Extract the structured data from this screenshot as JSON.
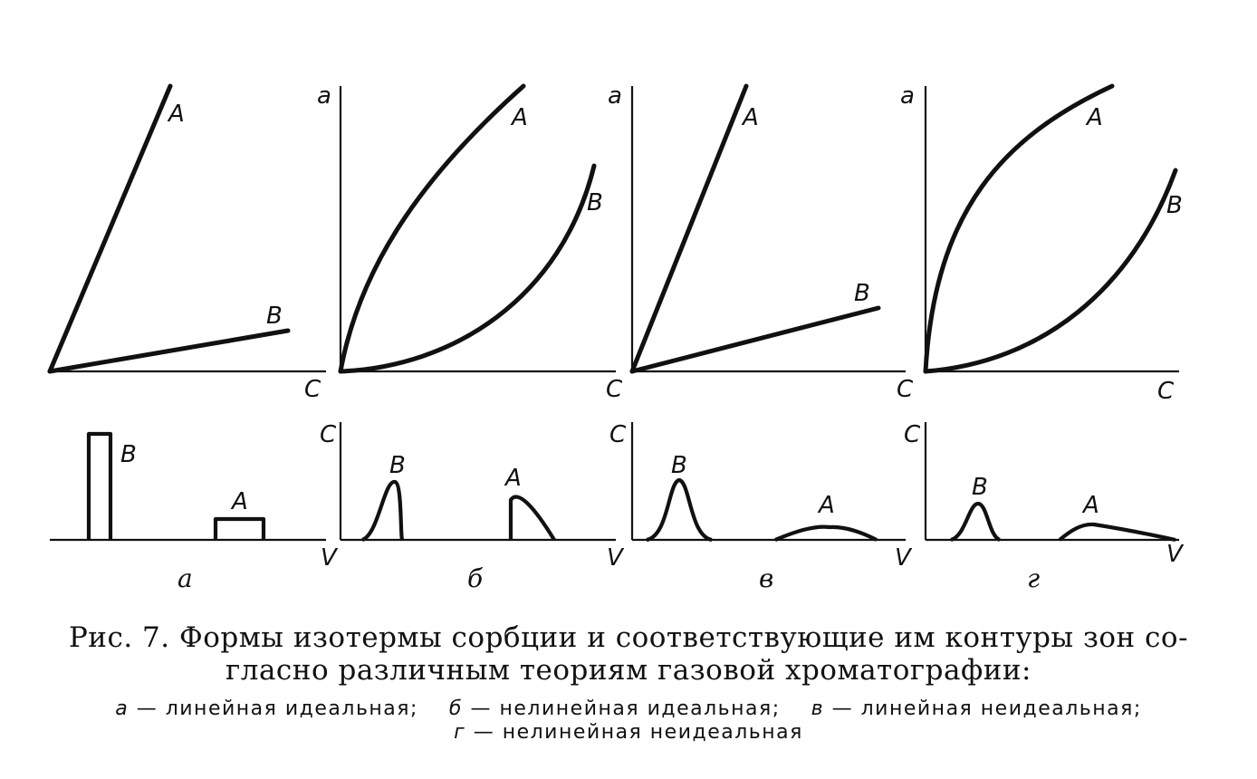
{
  "figure": {
    "labels": {
      "curve_a": "A",
      "curve_b": "B",
      "isotherm_y": "a",
      "isotherm_x": "C",
      "zone_y": "C",
      "zone_x": "V"
    },
    "panels": [
      {
        "letter": "a",
        "isotherm": "linear",
        "zones": "ideal"
      },
      {
        "letter": "б",
        "isotherm": "nonlinear",
        "zones": "ideal"
      },
      {
        "letter": "в",
        "isotherm": "linear",
        "zones": "nonideal"
      },
      {
        "letter": "г",
        "isotherm": "nonlinear",
        "zones": "nonideal"
      }
    ]
  },
  "caption": {
    "line1": "Рис. 7. Формы изотермы сорбции и соответствующие им контуры зон со-",
    "line2": "гласно различным теориям газовой хроматографии:",
    "legend": [
      {
        "letter": "а",
        "text": "— линейная идеальная;"
      },
      {
        "letter": "б",
        "text": "— нелинейная идеальная;"
      },
      {
        "letter": "в",
        "text": "— линейная неидеальная;"
      },
      {
        "letter": "г",
        "text": "— нелинейная неидеальная"
      }
    ]
  }
}
